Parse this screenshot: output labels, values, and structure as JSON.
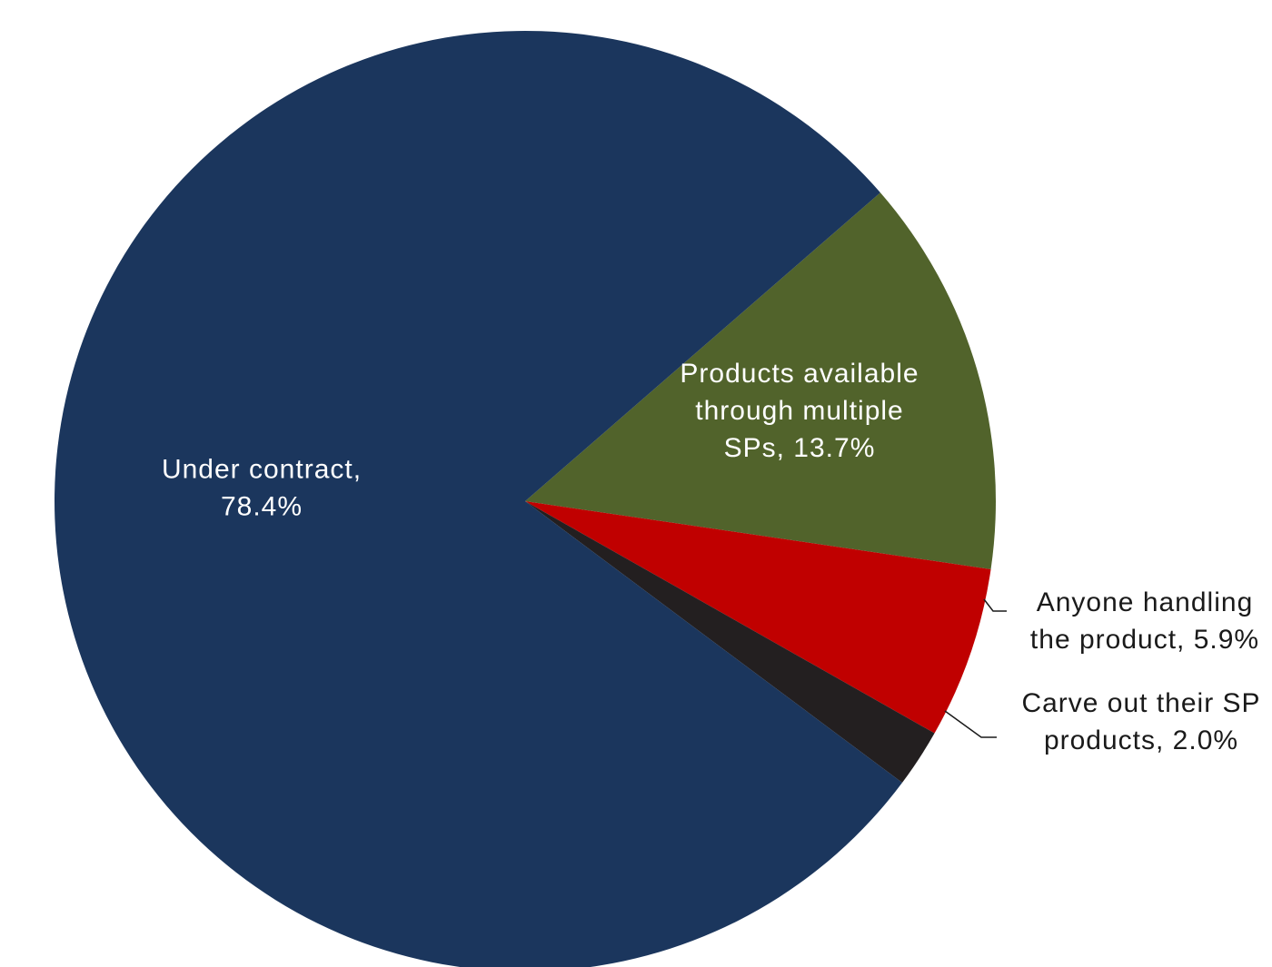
{
  "chart_data": {
    "type": "pie",
    "start_angle_deg": 41,
    "direction": "clockwise",
    "slices": [
      {
        "name": "Products available through multiple SPs",
        "value": 13.7,
        "color": "#51632b",
        "label_lines": [
          "Products available",
          "through multiple",
          "SPs, 13.7%"
        ],
        "label_color": "#ffffff",
        "label_style": "inside"
      },
      {
        "name": "Anyone handling the product",
        "value": 5.9,
        "color": "#c00000",
        "label_lines": [
          "Anyone handling",
          "the product, 5.9%"
        ],
        "label_color": "#1a1a1a",
        "label_style": "outside"
      },
      {
        "name": "Carve out their SP products",
        "value": 2.0,
        "color": "#231f20",
        "label_lines": [
          "Carve out their SP",
          "products, 2.0%"
        ],
        "label_color": "#1a1a1a",
        "label_style": "outside"
      },
      {
        "name": "Under contract",
        "value": 78.4,
        "color": "#1b365d",
        "label_lines": [
          "Under contract,",
          "78.4%"
        ],
        "label_color": "#ffffff",
        "label_style": "inside"
      }
    ]
  }
}
